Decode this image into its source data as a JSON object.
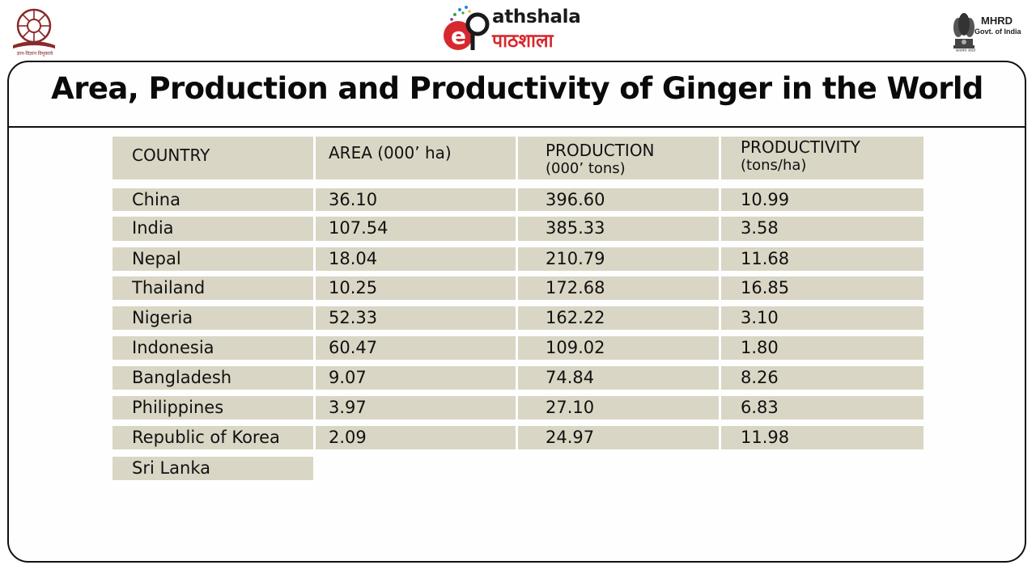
{
  "header": {
    "left_logo_caption": "ज्ञान-विज्ञान विमुक्तये",
    "center_logo_en": "athshala",
    "center_logo_hi": "पाठशाला",
    "right_logo_title": "MHRD",
    "right_logo_subtitle": "Govt. of India",
    "right_logo_motto": "सत्यमेव जयते"
  },
  "slide": {
    "title": "Area, Production and Productivity of Ginger in the World"
  },
  "table": {
    "headers": {
      "country": "COUNTRY",
      "area": "AREA (000’ ha)",
      "production_l1": "PRODUCTION",
      "production_l2": "(000’ tons)",
      "productivity_l1": "PRODUCTIVITY",
      "productivity_l2": "(tons/ha)"
    },
    "rows": [
      {
        "country": "China",
        "area": "36.10",
        "production": "396.60",
        "productivity": "10.99"
      },
      {
        "country": "India",
        "area": "107.54",
        "production": "385.33",
        "productivity": "3.58"
      },
      {
        "country": "Nepal",
        "area": "18.04",
        "production": "210.79",
        "productivity": "11.68"
      },
      {
        "country": "Thailand",
        "area": "10.25",
        "production": "172.68",
        "productivity": "16.85"
      },
      {
        "country": "Nigeria",
        "area": "52.33",
        "production": "162.22",
        "productivity": "3.10"
      },
      {
        "country": "Indonesia",
        "area": "60.47",
        "production": "109.02",
        "productivity": "1.80"
      },
      {
        "country": "Bangladesh",
        "area": "9.07",
        "production": "74.84",
        "productivity": "8.26"
      },
      {
        "country": "Philippines",
        "area": "3.97",
        "production": "27.10",
        "productivity": "6.83"
      },
      {
        "country": "Republic of Korea",
        "area": "2.09",
        "production": "24.97",
        "productivity": "11.98"
      },
      {
        "country": "Sri Lanka",
        "area": "",
        "production": "",
        "productivity": ""
      }
    ]
  }
}
